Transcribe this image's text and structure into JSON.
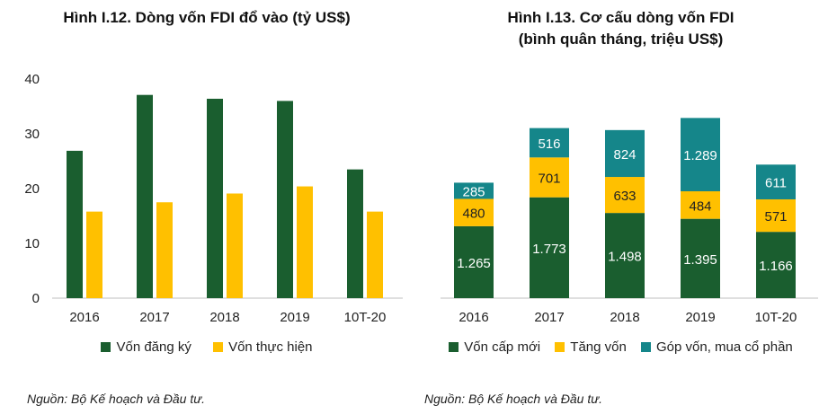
{
  "chart_data": [
    {
      "type": "bar",
      "title": "Hình I.12. Dòng vốn FDI đổ vào (tỷ US$)",
      "categories": [
        "2016",
        "2017",
        "2018",
        "2019",
        "10T-20"
      ],
      "series": [
        {
          "name": "Vốn đăng ký",
          "color": "#1a5e2f",
          "values": [
            26.9,
            37.1,
            36.4,
            36.0,
            23.5
          ]
        },
        {
          "name": "Vốn thực hiện",
          "color": "#ffc000",
          "values": [
            15.8,
            17.5,
            19.1,
            20.4,
            15.8
          ]
        }
      ],
      "yticks": [
        "0",
        "10",
        "20",
        "30",
        "40"
      ],
      "ylim": [
        0,
        40
      ],
      "grid": false,
      "legend": "bottom",
      "source": "Nguồn: Bộ Kế hoạch và Đầu tư."
    },
    {
      "type": "bar",
      "stacked": true,
      "title_line1": "Hình I.13. Cơ cấu dòng vốn FDI",
      "title_line2": "(bình quân tháng, triệu US$)",
      "categories": [
        "2016",
        "2017",
        "2018",
        "2019",
        "10T-20"
      ],
      "series": [
        {
          "name": "Vốn cấp mới",
          "color": "#1a5e2f",
          "label_color": "#ffffff",
          "values": [
            1265,
            1773,
            1498,
            1395,
            1166
          ],
          "labels": [
            "1.265",
            "1.773",
            "1.498",
            "1.395",
            "1.166"
          ]
        },
        {
          "name": "Tăng vốn",
          "color": "#ffc000",
          "label_color": "#222222",
          "values": [
            480,
            701,
            633,
            484,
            571
          ],
          "labels": [
            "480",
            "701",
            "633",
            "484",
            "571"
          ]
        },
        {
          "name": "Góp vốn, mua cổ phần",
          "color": "#15868a",
          "label_color": "#ffffff",
          "values": [
            285,
            516,
            824,
            1289,
            611
          ],
          "labels": [
            "285",
            "516",
            "824",
            "1.289",
            "611"
          ]
        }
      ],
      "ylim": [
        0,
        3600
      ],
      "grid": false,
      "legend": "bottom",
      "source": "Nguồn: Bộ Kế hoạch và Đầu tư."
    }
  ]
}
